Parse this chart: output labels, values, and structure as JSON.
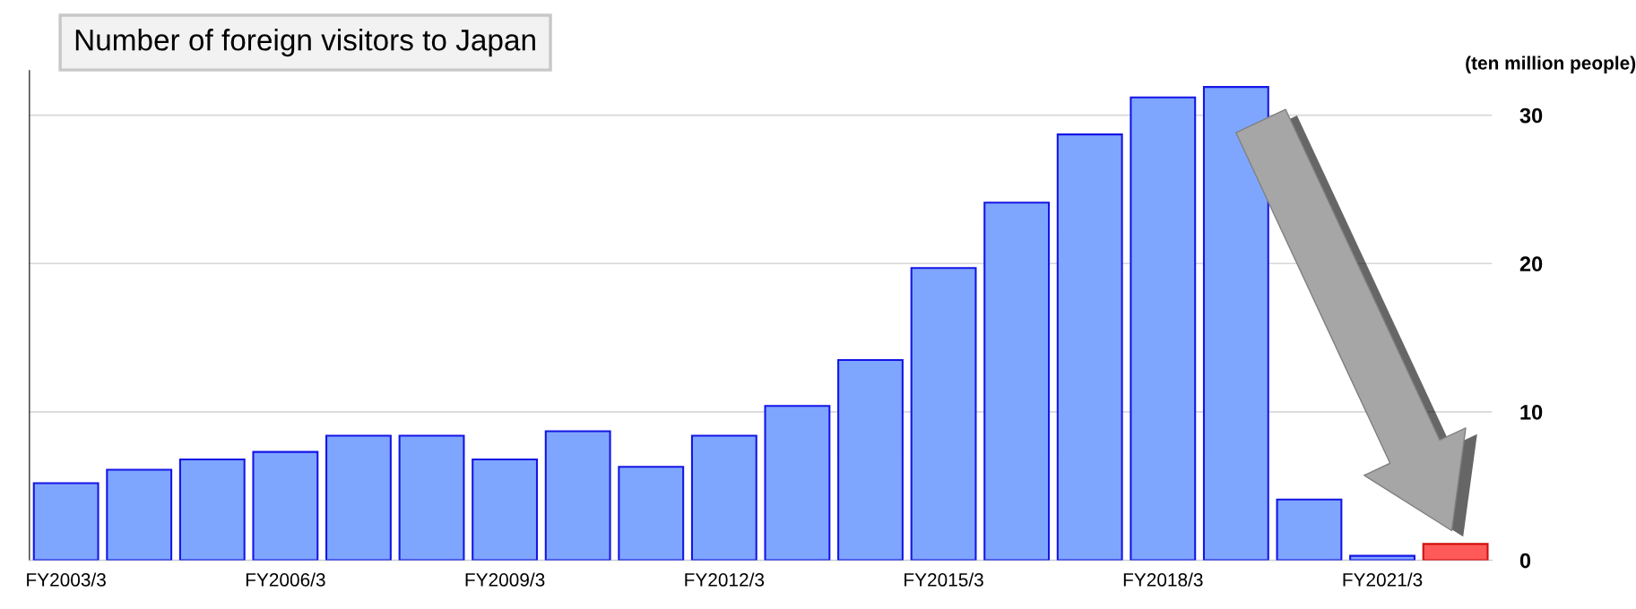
{
  "chart_data": {
    "type": "bar",
    "title": "Number of foreign visitors to Japan",
    "ylabel": "(ten million people)",
    "categories": [
      "FY2003/3",
      null,
      null,
      "FY2006/3",
      null,
      null,
      "FY2009/3",
      null,
      null,
      "FY2012/3",
      null,
      null,
      "FY2015/3",
      null,
      null,
      "FY2018/3",
      null,
      null,
      "FY2021/3",
      null
    ],
    "values": [
      5.2,
      6.1,
      6.8,
      7.3,
      8.4,
      8.4,
      6.8,
      8.7,
      6.3,
      8.4,
      10.4,
      13.5,
      19.7,
      24.1,
      28.7,
      31.2,
      31.9,
      4.1,
      0.3,
      1.1
    ],
    "colors": [
      "#7fa6ff",
      "#7fa6ff",
      "#7fa6ff",
      "#7fa6ff",
      "#7fa6ff",
      "#7fa6ff",
      "#7fa6ff",
      "#7fa6ff",
      "#7fa6ff",
      "#7fa6ff",
      "#7fa6ff",
      "#7fa6ff",
      "#7fa6ff",
      "#7fa6ff",
      "#7fa6ff",
      "#7fa6ff",
      "#7fa6ff",
      "#7fa6ff",
      "#7fa6ff",
      "#ff5a5a"
    ],
    "ylim": [
      0,
      33
    ],
    "yticks": [
      0,
      10,
      20,
      30
    ],
    "grid": "y"
  }
}
